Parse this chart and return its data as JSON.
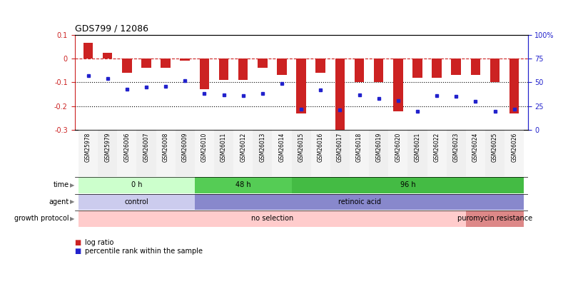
{
  "title": "GDS799 / 12086",
  "samples": [
    "GSM25978",
    "GSM25979",
    "GSM26006",
    "GSM26007",
    "GSM26008",
    "GSM26009",
    "GSM26010",
    "GSM26011",
    "GSM26012",
    "GSM26013",
    "GSM26014",
    "GSM26015",
    "GSM26016",
    "GSM26017",
    "GSM26018",
    "GSM26019",
    "GSM26020",
    "GSM26021",
    "GSM26022",
    "GSM26023",
    "GSM26024",
    "GSM26025",
    "GSM26026"
  ],
  "log_ratio": [
    0.065,
    0.025,
    -0.06,
    -0.04,
    -0.04,
    -0.01,
    -0.13,
    -0.09,
    -0.09,
    -0.04,
    -0.07,
    -0.23,
    -0.06,
    -0.3,
    -0.1,
    -0.1,
    -0.22,
    -0.08,
    -0.08,
    -0.07,
    -0.07,
    -0.1,
    -0.23
  ],
  "percentile": [
    57,
    54,
    43,
    45,
    46,
    52,
    38,
    37,
    36,
    38,
    49,
    22,
    42,
    21,
    37,
    33,
    31,
    20,
    36,
    35,
    30,
    20,
    22
  ],
  "ylim_left": [
    -0.3,
    0.1
  ],
  "ylim_right": [
    0,
    100
  ],
  "bar_color": "#cc2222",
  "dot_color": "#2222cc",
  "dashed_line_color": "#cc2222",
  "dotted_line_color": "#000000",
  "time_groups": [
    {
      "label": "0 h",
      "start": 0,
      "end": 5,
      "color": "#ccffcc"
    },
    {
      "label": "48 h",
      "start": 6,
      "end": 10,
      "color": "#55cc55"
    },
    {
      "label": "96 h",
      "start": 11,
      "end": 22,
      "color": "#44bb44"
    }
  ],
  "agent_groups": [
    {
      "label": "control",
      "start": 0,
      "end": 5,
      "color": "#ccccee"
    },
    {
      "label": "retinoic acid",
      "start": 6,
      "end": 22,
      "color": "#8888cc"
    }
  ],
  "growth_groups": [
    {
      "label": "no selection",
      "start": 0,
      "end": 19,
      "color": "#ffcccc"
    },
    {
      "label": "puromycin resistance",
      "start": 20,
      "end": 22,
      "color": "#dd8888"
    }
  ],
  "legend_items": [
    {
      "label": "log ratio",
      "color": "#cc2222"
    },
    {
      "label": "percentile rank within the sample",
      "color": "#2222cc"
    }
  ],
  "row_labels": [
    "time",
    "agent",
    "growth protocol"
  ],
  "background_color": "#ffffff",
  "tick_color_left": "#cc2222",
  "tick_color_right": "#2222cc"
}
